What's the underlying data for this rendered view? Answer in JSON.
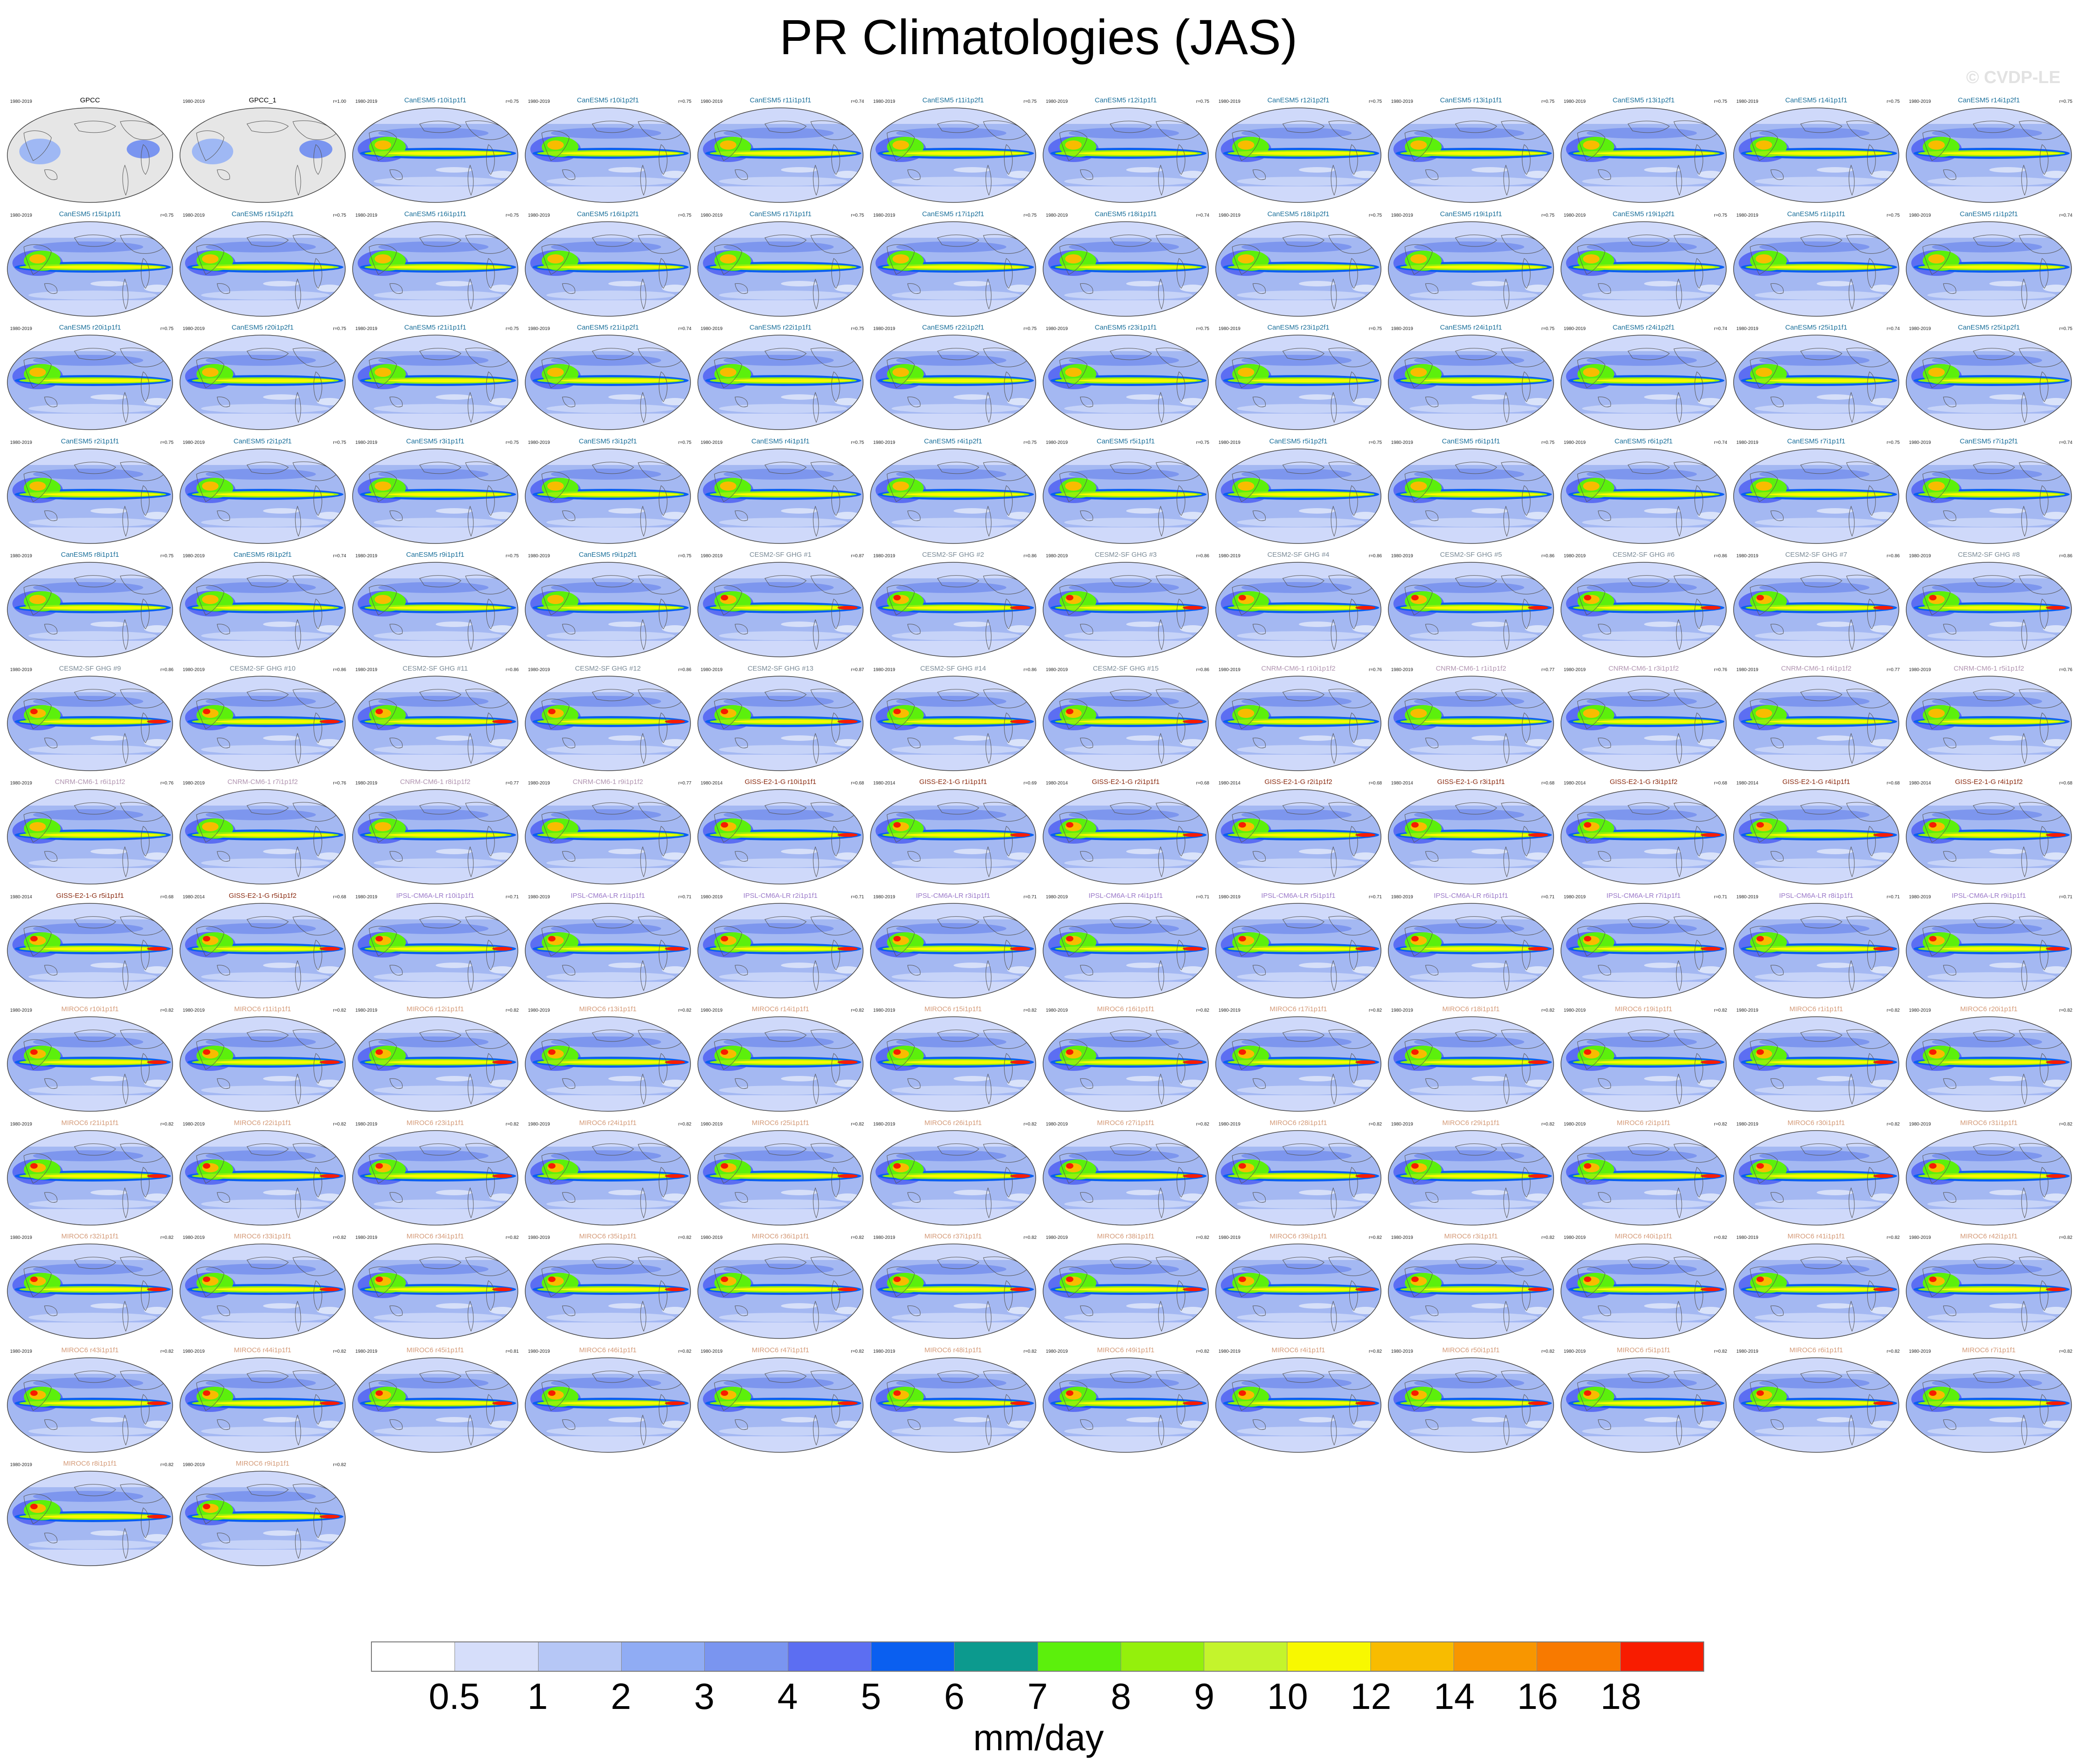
{
  "title": "PR Climatologies (JAS)",
  "watermark": "© CVDP-LE",
  "colorbar": {
    "units": "mm/day",
    "tick_labels": [
      "0.5",
      "1",
      "2",
      "3",
      "4",
      "5",
      "6",
      "7",
      "8",
      "9",
      "10",
      "12",
      "14",
      "16",
      "18"
    ],
    "colors": [
      "#ffffff",
      "#d6defa",
      "#b6c7f6",
      "#90acf4",
      "#7a95f0",
      "#5c6ef2",
      "#0a5ff0",
      "#0c9a8e",
      "#5cf00c",
      "#94f00c",
      "#c4f42c",
      "#f8f800",
      "#f8bc00",
      "#f89600",
      "#f87a00",
      "#f81c00"
    ]
  },
  "panels": [
    {
      "name": "GPCC",
      "years": "1980-2019",
      "r": "",
      "family": "obs"
    },
    {
      "name": "GPCC_1",
      "years": "1980-2019",
      "r": "r=1.00",
      "family": "obs"
    },
    {
      "name": "CanESM5 r10i1p1f1",
      "years": "1980-2019",
      "r": "r=0.75",
      "family": "canesm"
    },
    {
      "name": "CanESM5 r10i1p2f1",
      "years": "1980-2019",
      "r": "r=0.75",
      "family": "canesm"
    },
    {
      "name": "CanESM5 r11i1p1f1",
      "years": "1980-2019",
      "r": "r=0.74",
      "family": "canesm"
    },
    {
      "name": "CanESM5 r11i1p2f1",
      "years": "1980-2019",
      "r": "r=0.75",
      "family": "canesm"
    },
    {
      "name": "CanESM5 r12i1p1f1",
      "years": "1980-2019",
      "r": "r=0.75",
      "family": "canesm"
    },
    {
      "name": "CanESM5 r12i1p2f1",
      "years": "1980-2019",
      "r": "r=0.75",
      "family": "canesm"
    },
    {
      "name": "CanESM5 r13i1p1f1",
      "years": "1980-2019",
      "r": "r=0.75",
      "family": "canesm"
    },
    {
      "name": "CanESM5 r13i1p2f1",
      "years": "1980-2019",
      "r": "r=0.75",
      "family": "canesm"
    },
    {
      "name": "CanESM5 r14i1p1f1",
      "years": "1980-2019",
      "r": "r=0.75",
      "family": "canesm"
    },
    {
      "name": "CanESM5 r14i1p2f1",
      "years": "1980-2019",
      "r": "r=0.75",
      "family": "canesm"
    },
    {
      "name": "CanESM5 r15i1p1f1",
      "years": "1980-2019",
      "r": "r=0.75",
      "family": "canesm"
    },
    {
      "name": "CanESM5 r15i1p2f1",
      "years": "1980-2019",
      "r": "r=0.75",
      "family": "canesm"
    },
    {
      "name": "CanESM5 r16i1p1f1",
      "years": "1980-2019",
      "r": "r=0.75",
      "family": "canesm"
    },
    {
      "name": "CanESM5 r16i1p2f1",
      "years": "1980-2019",
      "r": "r=0.75",
      "family": "canesm"
    },
    {
      "name": "CanESM5 r17i1p1f1",
      "years": "1980-2019",
      "r": "r=0.75",
      "family": "canesm"
    },
    {
      "name": "CanESM5 r17i1p2f1",
      "years": "1980-2019",
      "r": "r=0.75",
      "family": "canesm"
    },
    {
      "name": "CanESM5 r18i1p1f1",
      "years": "1980-2019",
      "r": "r=0.74",
      "family": "canesm"
    },
    {
      "name": "CanESM5 r18i1p2f1",
      "years": "1980-2019",
      "r": "r=0.75",
      "family": "canesm"
    },
    {
      "name": "CanESM5 r19i1p1f1",
      "years": "1980-2019",
      "r": "r=0.75",
      "family": "canesm"
    },
    {
      "name": "CanESM5 r19i1p2f1",
      "years": "1980-2019",
      "r": "r=0.75",
      "family": "canesm"
    },
    {
      "name": "CanESM5 r1i1p1f1",
      "years": "1980-2019",
      "r": "r=0.75",
      "family": "canesm"
    },
    {
      "name": "CanESM5 r1i1p2f1",
      "years": "1980-2019",
      "r": "r=0.74",
      "family": "canesm"
    },
    {
      "name": "CanESM5 r20i1p1f1",
      "years": "1980-2019",
      "r": "r=0.75",
      "family": "canesm"
    },
    {
      "name": "CanESM5 r20i1p2f1",
      "years": "1980-2019",
      "r": "r=0.75",
      "family": "canesm"
    },
    {
      "name": "CanESM5 r21i1p1f1",
      "years": "1980-2019",
      "r": "r=0.75",
      "family": "canesm"
    },
    {
      "name": "CanESM5 r21i1p2f1",
      "years": "1980-2019",
      "r": "r=0.74",
      "family": "canesm"
    },
    {
      "name": "CanESM5 r22i1p1f1",
      "years": "1980-2019",
      "r": "r=0.75",
      "family": "canesm"
    },
    {
      "name": "CanESM5 r22i1p2f1",
      "years": "1980-2019",
      "r": "r=0.75",
      "family": "canesm"
    },
    {
      "name": "CanESM5 r23i1p1f1",
      "years": "1980-2019",
      "r": "r=0.75",
      "family": "canesm"
    },
    {
      "name": "CanESM5 r23i1p2f1",
      "years": "1980-2019",
      "r": "r=0.75",
      "family": "canesm"
    },
    {
      "name": "CanESM5 r24i1p1f1",
      "years": "1980-2019",
      "r": "r=0.75",
      "family": "canesm"
    },
    {
      "name": "CanESM5 r24i1p2f1",
      "years": "1980-2019",
      "r": "r=0.74",
      "family": "canesm"
    },
    {
      "name": "CanESM5 r25i1p1f1",
      "years": "1980-2019",
      "r": "r=0.74",
      "family": "canesm"
    },
    {
      "name": "CanESM5 r25i1p2f1",
      "years": "1980-2019",
      "r": "r=0.75",
      "family": "canesm"
    },
    {
      "name": "CanESM5 r2i1p1f1",
      "years": "1980-2019",
      "r": "r=0.75",
      "family": "canesm"
    },
    {
      "name": "CanESM5 r2i1p2f1",
      "years": "1980-2019",
      "r": "r=0.75",
      "family": "canesm"
    },
    {
      "name": "CanESM5 r3i1p1f1",
      "years": "1980-2019",
      "r": "r=0.75",
      "family": "canesm"
    },
    {
      "name": "CanESM5 r3i1p2f1",
      "years": "1980-2019",
      "r": "r=0.75",
      "family": "canesm"
    },
    {
      "name": "CanESM5 r4i1p1f1",
      "years": "1980-2019",
      "r": "r=0.75",
      "family": "canesm"
    },
    {
      "name": "CanESM5 r4i1p2f1",
      "years": "1980-2019",
      "r": "r=0.75",
      "family": "canesm"
    },
    {
      "name": "CanESM5 r5i1p1f1",
      "years": "1980-2019",
      "r": "r=0.75",
      "family": "canesm"
    },
    {
      "name": "CanESM5 r5i1p2f1",
      "years": "1980-2019",
      "r": "r=0.75",
      "family": "canesm"
    },
    {
      "name": "CanESM5 r6i1p1f1",
      "years": "1980-2019",
      "r": "r=0.75",
      "family": "canesm"
    },
    {
      "name": "CanESM5 r6i1p2f1",
      "years": "1980-2019",
      "r": "r=0.74",
      "family": "canesm"
    },
    {
      "name": "CanESM5 r7i1p1f1",
      "years": "1980-2019",
      "r": "r=0.75",
      "family": "canesm"
    },
    {
      "name": "CanESM5 r7i1p2f1",
      "years": "1980-2019",
      "r": "r=0.74",
      "family": "canesm"
    },
    {
      "name": "CanESM5 r8i1p1f1",
      "years": "1980-2019",
      "r": "r=0.75",
      "family": "canesm"
    },
    {
      "name": "CanESM5 r8i1p2f1",
      "years": "1980-2019",
      "r": "r=0.74",
      "family": "canesm"
    },
    {
      "name": "CanESM5 r9i1p1f1",
      "years": "1980-2019",
      "r": "r=0.75",
      "family": "canesm"
    },
    {
      "name": "CanESM5 r9i1p2f1",
      "years": "1980-2019",
      "r": "r=0.75",
      "family": "canesm"
    },
    {
      "name": "CESM2-SF GHG #1",
      "years": "1980-2019",
      "r": "r=0.87",
      "family": "cesm"
    },
    {
      "name": "CESM2-SF GHG #2",
      "years": "1980-2019",
      "r": "r=0.86",
      "family": "cesm"
    },
    {
      "name": "CESM2-SF GHG #3",
      "years": "1980-2019",
      "r": "r=0.86",
      "family": "cesm"
    },
    {
      "name": "CESM2-SF GHG #4",
      "years": "1980-2019",
      "r": "r=0.86",
      "family": "cesm"
    },
    {
      "name": "CESM2-SF GHG #5",
      "years": "1980-2019",
      "r": "r=0.86",
      "family": "cesm"
    },
    {
      "name": "CESM2-SF GHG #6",
      "years": "1980-2019",
      "r": "r=0.86",
      "family": "cesm"
    },
    {
      "name": "CESM2-SF GHG #7",
      "years": "1980-2019",
      "r": "r=0.86",
      "family": "cesm"
    },
    {
      "name": "CESM2-SF GHG #8",
      "years": "1980-2019",
      "r": "r=0.86",
      "family": "cesm"
    },
    {
      "name": "CESM2-SF GHG #9",
      "years": "1980-2019",
      "r": "r=0.86",
      "family": "cesm"
    },
    {
      "name": "CESM2-SF GHG #10",
      "years": "1980-2019",
      "r": "r=0.86",
      "family": "cesm"
    },
    {
      "name": "CESM2-SF GHG #11",
      "years": "1980-2019",
      "r": "r=0.86",
      "family": "cesm"
    },
    {
      "name": "CESM2-SF GHG #12",
      "years": "1980-2019",
      "r": "r=0.86",
      "family": "cesm"
    },
    {
      "name": "CESM2-SF GHG #13",
      "years": "1980-2019",
      "r": "r=0.87",
      "family": "cesm"
    },
    {
      "name": "CESM2-SF GHG #14",
      "years": "1980-2019",
      "r": "r=0.86",
      "family": "cesm"
    },
    {
      "name": "CESM2-SF GHG #15",
      "years": "1980-2019",
      "r": "r=0.86",
      "family": "cesm"
    },
    {
      "name": "CNRM-CM6-1 r10i1p1f2",
      "years": "1980-2019",
      "r": "r=0.76",
      "family": "cnrm"
    },
    {
      "name": "CNRM-CM6-1 r1i1p1f2",
      "years": "1980-2019",
      "r": "r=0.77",
      "family": "cnrm"
    },
    {
      "name": "CNRM-CM6-1 r3i1p1f2",
      "years": "1980-2019",
      "r": "r=0.76",
      "family": "cnrm"
    },
    {
      "name": "CNRM-CM6-1 r4i1p1f2",
      "years": "1980-2019",
      "r": "r=0.77",
      "family": "cnrm"
    },
    {
      "name": "CNRM-CM6-1 r5i1p1f2",
      "years": "1980-2019",
      "r": "r=0.76",
      "family": "cnrm"
    },
    {
      "name": "CNRM-CM6-1 r6i1p1f2",
      "years": "1980-2019",
      "r": "r=0.76",
      "family": "cnrm"
    },
    {
      "name": "CNRM-CM6-1 r7i1p1f2",
      "years": "1980-2019",
      "r": "r=0.76",
      "family": "cnrm"
    },
    {
      "name": "CNRM-CM6-1 r8i1p1f2",
      "years": "1980-2019",
      "r": "r=0.77",
      "family": "cnrm"
    },
    {
      "name": "CNRM-CM6-1 r9i1p1f2",
      "years": "1980-2019",
      "r": "r=0.77",
      "family": "cnrm"
    },
    {
      "name": "GISS-E2-1-G r10i1p1f1",
      "years": "1980-2014",
      "r": "r=0.68",
      "family": "giss"
    },
    {
      "name": "GISS-E2-1-G r1i1p1f1",
      "years": "1980-2014",
      "r": "r=0.69",
      "family": "giss"
    },
    {
      "name": "GISS-E2-1-G r2i1p1f1",
      "years": "1980-2014",
      "r": "r=0.68",
      "family": "giss"
    },
    {
      "name": "GISS-E2-1-G r2i1p1f2",
      "years": "1980-2014",
      "r": "r=0.68",
      "family": "giss"
    },
    {
      "name": "GISS-E2-1-G r3i1p1f1",
      "years": "1980-2014",
      "r": "r=0.68",
      "family": "giss"
    },
    {
      "name": "GISS-E2-1-G r3i1p1f2",
      "years": "1980-2014",
      "r": "r=0.68",
      "family": "giss"
    },
    {
      "name": "GISS-E2-1-G r4i1p1f1",
      "years": "1980-2014",
      "r": "r=0.68",
      "family": "giss"
    },
    {
      "name": "GISS-E2-1-G r4i1p1f2",
      "years": "1980-2014",
      "r": "r=0.68",
      "family": "giss"
    },
    {
      "name": "GISS-E2-1-G r5i1p1f1",
      "years": "1980-2014",
      "r": "r=0.68",
      "family": "giss"
    },
    {
      "name": "GISS-E2-1-G r5i1p1f2",
      "years": "1980-2014",
      "r": "r=0.68",
      "family": "giss"
    },
    {
      "name": "IPSL-CM6A-LR r10i1p1f1",
      "years": "1980-2019",
      "r": "r=0.71",
      "family": "ipsl"
    },
    {
      "name": "IPSL-CM6A-LR r1i1p1f1",
      "years": "1980-2019",
      "r": "r=0.71",
      "family": "ipsl"
    },
    {
      "name": "IPSL-CM6A-LR r2i1p1f1",
      "years": "1980-2019",
      "r": "r=0.71",
      "family": "ipsl"
    },
    {
      "name": "IPSL-CM6A-LR r3i1p1f1",
      "years": "1980-2019",
      "r": "r=0.71",
      "family": "ipsl"
    },
    {
      "name": "IPSL-CM6A-LR r4i1p1f1",
      "years": "1980-2019",
      "r": "r=0.71",
      "family": "ipsl"
    },
    {
      "name": "IPSL-CM6A-LR r5i1p1f1",
      "years": "1980-2019",
      "r": "r=0.71",
      "family": "ipsl"
    },
    {
      "name": "IPSL-CM6A-LR r6i1p1f1",
      "years": "1980-2019",
      "r": "r=0.71",
      "family": "ipsl"
    },
    {
      "name": "IPSL-CM6A-LR r7i1p1f1",
      "years": "1980-2019",
      "r": "r=0.71",
      "family": "ipsl"
    },
    {
      "name": "IPSL-CM6A-LR r8i1p1f1",
      "years": "1980-2019",
      "r": "r=0.71",
      "family": "ipsl"
    },
    {
      "name": "IPSL-CM6A-LR r9i1p1f1",
      "years": "1980-2019",
      "r": "r=0.71",
      "family": "ipsl"
    },
    {
      "name": "MIROC6 r10i1p1f1",
      "years": "1980-2019",
      "r": "r=0.82",
      "family": "miroc"
    },
    {
      "name": "MIROC6 r11i1p1f1",
      "years": "1980-2019",
      "r": "r=0.82",
      "family": "miroc"
    },
    {
      "name": "MIROC6 r12i1p1f1",
      "years": "1980-2019",
      "r": "r=0.82",
      "family": "miroc"
    },
    {
      "name": "MIROC6 r13i1p1f1",
      "years": "1980-2019",
      "r": "r=0.82",
      "family": "miroc"
    },
    {
      "name": "MIROC6 r14i1p1f1",
      "years": "1980-2019",
      "r": "r=0.82",
      "family": "miroc"
    },
    {
      "name": "MIROC6 r15i1p1f1",
      "years": "1980-2019",
      "r": "r=0.82",
      "family": "miroc"
    },
    {
      "name": "MIROC6 r16i1p1f1",
      "years": "1980-2019",
      "r": "r=0.82",
      "family": "miroc"
    },
    {
      "name": "MIROC6 r17i1p1f1",
      "years": "1980-2019",
      "r": "r=0.82",
      "family": "miroc"
    },
    {
      "name": "MIROC6 r18i1p1f1",
      "years": "1980-2019",
      "r": "r=0.82",
      "family": "miroc"
    },
    {
      "name": "MIROC6 r19i1p1f1",
      "years": "1980-2019",
      "r": "r=0.82",
      "family": "miroc"
    },
    {
      "name": "MIROC6 r1i1p1f1",
      "years": "1980-2019",
      "r": "r=0.82",
      "family": "miroc"
    },
    {
      "name": "MIROC6 r20i1p1f1",
      "years": "1980-2019",
      "r": "r=0.82",
      "family": "miroc"
    },
    {
      "name": "MIROC6 r21i1p1f1",
      "years": "1980-2019",
      "r": "r=0.82",
      "family": "miroc"
    },
    {
      "name": "MIROC6 r22i1p1f1",
      "years": "1980-2019",
      "r": "r=0.82",
      "family": "miroc"
    },
    {
      "name": "MIROC6 r23i1p1f1",
      "years": "1980-2019",
      "r": "r=0.82",
      "family": "miroc"
    },
    {
      "name": "MIROC6 r24i1p1f1",
      "years": "1980-2019",
      "r": "r=0.82",
      "family": "miroc"
    },
    {
      "name": "MIROC6 r25i1p1f1",
      "years": "1980-2019",
      "r": "r=0.82",
      "family": "miroc"
    },
    {
      "name": "MIROC6 r26i1p1f1",
      "years": "1980-2019",
      "r": "r=0.82",
      "family": "miroc"
    },
    {
      "name": "MIROC6 r27i1p1f1",
      "years": "1980-2019",
      "r": "r=0.82",
      "family": "miroc"
    },
    {
      "name": "MIROC6 r28i1p1f1",
      "years": "1980-2019",
      "r": "r=0.82",
      "family": "miroc"
    },
    {
      "name": "MIROC6 r29i1p1f1",
      "years": "1980-2019",
      "r": "r=0.82",
      "family": "miroc"
    },
    {
      "name": "MIROC6 r2i1p1f1",
      "years": "1980-2019",
      "r": "r=0.82",
      "family": "miroc"
    },
    {
      "name": "MIROC6 r30i1p1f1",
      "years": "1980-2019",
      "r": "r=0.82",
      "family": "miroc"
    },
    {
      "name": "MIROC6 r31i1p1f1",
      "years": "1980-2019",
      "r": "r=0.82",
      "family": "miroc"
    },
    {
      "name": "MIROC6 r32i1p1f1",
      "years": "1980-2019",
      "r": "r=0.82",
      "family": "miroc"
    },
    {
      "name": "MIROC6 r33i1p1f1",
      "years": "1980-2019",
      "r": "r=0.82",
      "family": "miroc"
    },
    {
      "name": "MIROC6 r34i1p1f1",
      "years": "1980-2019",
      "r": "r=0.82",
      "family": "miroc"
    },
    {
      "name": "MIROC6 r35i1p1f1",
      "years": "1980-2019",
      "r": "r=0.82",
      "family": "miroc"
    },
    {
      "name": "MIROC6 r36i1p1f1",
      "years": "1980-2019",
      "r": "r=0.82",
      "family": "miroc"
    },
    {
      "name": "MIROC6 r37i1p1f1",
      "years": "1980-2019",
      "r": "r=0.82",
      "family": "miroc"
    },
    {
      "name": "MIROC6 r38i1p1f1",
      "years": "1980-2019",
      "r": "r=0.82",
      "family": "miroc"
    },
    {
      "name": "MIROC6 r39i1p1f1",
      "years": "1980-2019",
      "r": "r=0.82",
      "family": "miroc"
    },
    {
      "name": "MIROC6 r3i1p1f1",
      "years": "1980-2019",
      "r": "r=0.82",
      "family": "miroc"
    },
    {
      "name": "MIROC6 r40i1p1f1",
      "years": "1980-2019",
      "r": "r=0.82",
      "family": "miroc"
    },
    {
      "name": "MIROC6 r41i1p1f1",
      "years": "1980-2019",
      "r": "r=0.82",
      "family": "miroc"
    },
    {
      "name": "MIROC6 r42i1p1f1",
      "years": "1980-2019",
      "r": "r=0.82",
      "family": "miroc"
    },
    {
      "name": "MIROC6 r43i1p1f1",
      "years": "1980-2019",
      "r": "r=0.82",
      "family": "miroc"
    },
    {
      "name": "MIROC6 r44i1p1f1",
      "years": "1980-2019",
      "r": "r=0.82",
      "family": "miroc"
    },
    {
      "name": "MIROC6 r45i1p1f1",
      "years": "1980-2019",
      "r": "r=0.81",
      "family": "miroc"
    },
    {
      "name": "MIROC6 r46i1p1f1",
      "years": "1980-2019",
      "r": "r=0.82",
      "family": "miroc"
    },
    {
      "name": "MIROC6 r47i1p1f1",
      "years": "1980-2019",
      "r": "r=0.82",
      "family": "miroc"
    },
    {
      "name": "MIROC6 r48i1p1f1",
      "years": "1980-2019",
      "r": "r=0.82",
      "family": "miroc"
    },
    {
      "name": "MIROC6 r49i1p1f1",
      "years": "1980-2019",
      "r": "r=0.82",
      "family": "miroc"
    },
    {
      "name": "MIROC6 r4i1p1f1",
      "years": "1980-2019",
      "r": "r=0.82",
      "family": "miroc"
    },
    {
      "name": "MIROC6 r50i1p1f1",
      "years": "1980-2019",
      "r": "r=0.82",
      "family": "miroc"
    },
    {
      "name": "MIROC6 r5i1p1f1",
      "years": "1980-2019",
      "r": "r=0.82",
      "family": "miroc"
    },
    {
      "name": "MIROC6 r6i1p1f1",
      "years": "1980-2019",
      "r": "r=0.82",
      "family": "miroc"
    },
    {
      "name": "MIROC6 r7i1p1f1",
      "years": "1980-2019",
      "r": "r=0.82",
      "family": "miroc"
    },
    {
      "name": "MIROC6 r8i1p1f1",
      "years": "1980-2019",
      "r": "r=0.82",
      "family": "miroc"
    },
    {
      "name": "MIROC6 r9i1p1f1",
      "years": "1980-2019",
      "r": "r=0.82",
      "family": "miroc"
    }
  ],
  "family_colors": {
    "obs": "#000000",
    "canesm": "#1a6f9a",
    "cesm": "#7a8a96",
    "cnrm": "#b094b0",
    "giss": "#8a2a10",
    "ipsl": "#9a78c8",
    "miroc": "#d49a78"
  }
}
